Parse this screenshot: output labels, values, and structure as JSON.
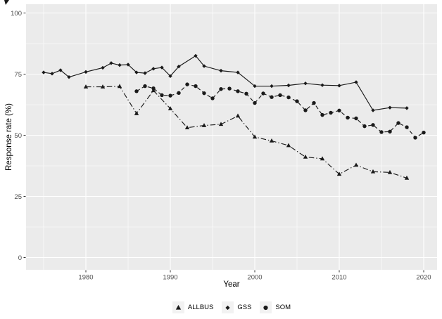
{
  "colors": {
    "background": "#FFFFFF",
    "panel_bg": "#EBEBEB",
    "gridline": "#FFFFFF",
    "series_color": "#1A1A1A",
    "axis_text": "#4D4D4D",
    "axis_title": "#000000",
    "tick_mark": "#333333",
    "legend_key_bg": "#F2F2F2"
  },
  "chart_data": {
    "type": "line",
    "title": "",
    "xlabel": "Year",
    "ylabel": "Response rate (%)",
    "x_ticks": [
      1980,
      1990,
      2000,
      2010,
      2020
    ],
    "x_minor_ticks": [
      1975,
      1985,
      1995,
      2005,
      2015
    ],
    "y_ticks": [
      0,
      25,
      50,
      75,
      100
    ],
    "y_minor_ticks": [
      12.5,
      37.5,
      62.5,
      87.5
    ],
    "x_range": [
      1973,
      2021.6
    ],
    "y_range": [
      0,
      100
    ],
    "grid": true,
    "legend_position": "bottom",
    "series": [
      {
        "name": "ALLBUS",
        "marker": "triangle",
        "linetype": "dotdash",
        "x": [
          1980,
          1982,
          1984,
          1986,
          1988,
          1990,
          1992,
          1994,
          1996,
          1998,
          2000,
          2002,
          2004,
          2006,
          2008,
          2010,
          2012,
          2014,
          2016,
          2018
        ],
        "y": [
          69.8,
          69.8,
          70.0,
          58.9,
          68.3,
          60.9,
          53.1,
          54.0,
          54.5,
          57.9,
          49.3,
          47.7,
          45.8,
          41.1,
          40.4,
          34.1,
          37.8,
          35.1,
          34.8,
          32.5
        ]
      },
      {
        "name": "GSS",
        "marker": "diamond",
        "linetype": "solid",
        "x": [
          1975,
          1976,
          1977,
          1978,
          1980,
          1982,
          1983,
          1984,
          1985,
          1986,
          1987,
          1988,
          1989,
          1990,
          1991,
          1993,
          1994,
          1996,
          1998,
          2000,
          2002,
          2004,
          2006,
          2008,
          2010,
          2012,
          2014,
          2016,
          2018
        ],
        "y": [
          75.7,
          75.2,
          76.6,
          73.8,
          75.9,
          77.6,
          79.5,
          78.7,
          78.9,
          75.7,
          75.4,
          77.2,
          77.7,
          74.2,
          78.1,
          82.5,
          78.3,
          76.4,
          75.7,
          70.1,
          70.1,
          70.4,
          71.2,
          70.5,
          70.3,
          71.7,
          60.2,
          61.3,
          61.1
        ]
      },
      {
        "name": "SOM",
        "marker": "circle",
        "linetype": "dashed",
        "x": [
          1986,
          1987,
          1988,
          1989,
          1990,
          1991,
          1992,
          1993,
          1994,
          1995,
          1996,
          1997,
          1998,
          1999,
          2000,
          2001,
          2002,
          2003,
          2004,
          2005,
          2006,
          2007,
          2008,
          2009,
          2010,
          2011,
          2012,
          2013,
          2014,
          2015,
          2016,
          2017,
          2018,
          2019,
          2020
        ],
        "y": [
          68.0,
          70.1,
          69.2,
          66.4,
          66.2,
          67.3,
          70.8,
          70.1,
          67.2,
          65.1,
          68.9,
          69.1,
          68.0,
          67.0,
          63.2,
          67.1,
          65.6,
          66.4,
          65.5,
          63.9,
          60.2,
          63.2,
          58.3,
          59.2,
          60.1,
          57.2,
          56.9,
          53.7,
          54.2,
          51.3,
          51.5,
          55.0,
          53.3,
          49.0,
          51.1
        ]
      }
    ]
  }
}
